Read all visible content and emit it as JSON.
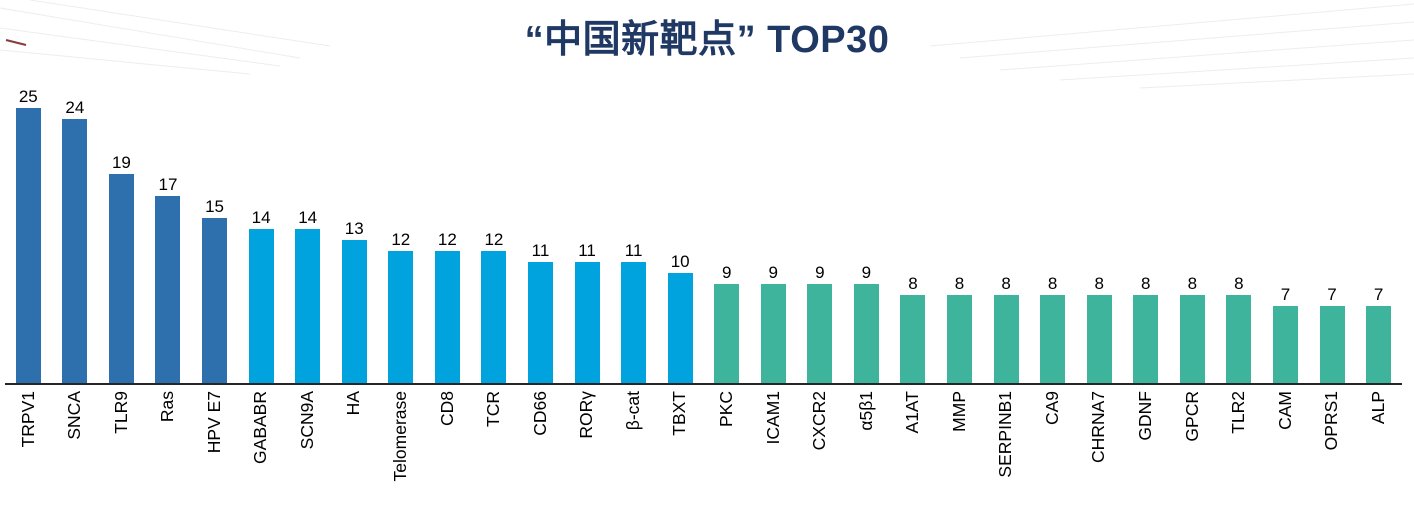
{
  "title": "“中国新靶点” TOP30",
  "chart_data": {
    "type": "bar",
    "title": "“中国新靶点” TOP30",
    "categories": [
      "TRPV1",
      "SNCA",
      "TLR9",
      "Ras",
      "HPV E7",
      "GABABR",
      "SCN9A",
      "HA",
      "Telomerase",
      "CD8",
      "TCR",
      "CD66",
      "RORγ",
      "β-cat",
      "TBXT",
      "PKC",
      "ICAM1",
      "CXCR2",
      "α5β1",
      "A1AT",
      "MMP",
      "SERPINB1",
      "CA9",
      "CHRNA7",
      "GDNF",
      "GPCR",
      "TLR2",
      "CAM",
      "OPRS1",
      "ALP"
    ],
    "values": [
      25,
      24,
      19,
      17,
      15,
      14,
      14,
      13,
      12,
      12,
      12,
      11,
      11,
      11,
      10,
      9,
      9,
      9,
      9,
      8,
      8,
      8,
      8,
      8,
      8,
      8,
      8,
      7,
      7,
      7
    ],
    "color_groups": [
      {
        "color": "#2e6fad",
        "count": 5
      },
      {
        "color": "#00a3dd",
        "count": 10
      },
      {
        "color": "#3fb49d",
        "count": 15
      }
    ],
    "xlabel": "",
    "ylabel": "",
    "ylim": [
      0,
      27
    ],
    "grid": false,
    "legend": false,
    "value_labels": true,
    "x_label_rotation": 90
  },
  "colors": {
    "title": "#1f3864",
    "axis": "#262626",
    "value_label": "#000000",
    "decorative_lines": "#e9e9e9",
    "decorative_accent": "#8b3a3a"
  }
}
